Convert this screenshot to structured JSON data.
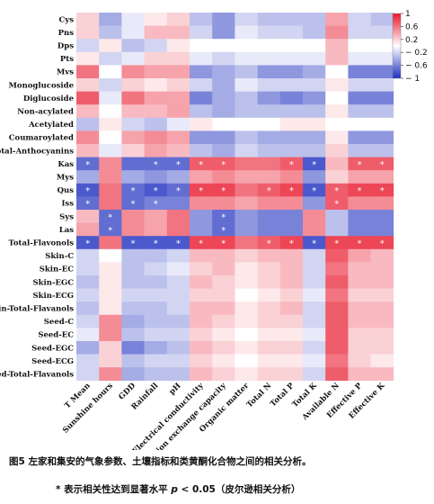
{
  "caption": "图5 左家和集安的气象参数、土壤指标和类黄酮化合物之间的相关分析。",
  "note": {
    "prefix": "* 表示相关性达到显著水平 ",
    "p": "p",
    "suffix": " < 0.05（皮尔逊相关分析）"
  },
  "chart_data": {
    "type": "heatmap",
    "title": "",
    "rows": [
      "Cys",
      "Pns",
      "Dps",
      "Pts",
      "Mvs",
      "Monoglucoside",
      "Diglucoside",
      "Non-acylated",
      "Acetylated",
      "Coumaroylated",
      "Total-Anthocyanins",
      "Kas",
      "Mys",
      "Qus",
      "Iss",
      "Sys",
      "Las",
      "Total-Flavonols",
      "Skin-C",
      "Skin-EC",
      "Skin-EGC",
      "Skin-ECG",
      "Skin-Total-Flavanols",
      "Seed-C",
      "Seed-EC",
      "Seed-EGC",
      "Seed-ECG",
      "Seed-Total-Flavanols"
    ],
    "columns": [
      "T Mean",
      "Sunshine hours",
      "GDD",
      "Rainfall",
      "pH",
      "Electrical conductivity",
      "Cation exchange capacity",
      "Organic matter",
      "Total N",
      "Total P",
      "Total K",
      "Available N",
      "Effective P",
      "Effective K"
    ],
    "values": [
      [
        0.2,
        -0.4,
        -0.1,
        0.1,
        0.2,
        -0.3,
        -0.5,
        -0.2,
        -0.3,
        -0.3,
        -0.3,
        0.4,
        -0.2,
        -0.3
      ],
      [
        0.2,
        -0.3,
        -0.1,
        0.3,
        0.3,
        -0.2,
        -0.5,
        -0.1,
        -0.2,
        -0.2,
        -0.3,
        0.5,
        -0.2,
        -0.2
      ],
      [
        -0.2,
        0.1,
        -0.3,
        -0.2,
        0.1,
        0.0,
        0.0,
        0.0,
        0.0,
        0.0,
        0.0,
        0.3,
        0.0,
        0.0
      ],
      [
        0.1,
        -0.2,
        -0.1,
        0.2,
        0.2,
        -0.1,
        -0.2,
        -0.1,
        -0.1,
        -0.1,
        -0.1,
        0.3,
        -0.1,
        -0.1
      ],
      [
        0.6,
        0.0,
        0.5,
        0.4,
        0.4,
        -0.5,
        -0.4,
        -0.3,
        -0.5,
        -0.5,
        -0.4,
        0.0,
        -0.6,
        -0.6
      ],
      [
        0.2,
        -0.2,
        0.2,
        0.1,
        0.2,
        -0.2,
        -0.4,
        -0.1,
        -0.2,
        -0.2,
        -0.2,
        0.1,
        -0.2,
        -0.2
      ],
      [
        0.7,
        -0.1,
        0.6,
        0.4,
        0.4,
        -0.6,
        -0.4,
        -0.3,
        -0.5,
        -0.6,
        -0.5,
        0.0,
        -0.6,
        -0.6
      ],
      [
        0.3,
        0.0,
        0.3,
        0.3,
        0.4,
        -0.3,
        -0.4,
        -0.3,
        -0.3,
        -0.3,
        -0.3,
        0.1,
        -0.3,
        -0.3
      ],
      [
        -0.3,
        0.1,
        -0.2,
        -0.3,
        -0.1,
        0.1,
        0.0,
        0.0,
        0.0,
        0.1,
        0.1,
        0.0,
        0.0,
        0.0
      ],
      [
        0.5,
        0.0,
        0.4,
        0.5,
        0.4,
        -0.5,
        -0.5,
        -0.3,
        -0.4,
        -0.4,
        -0.4,
        0.1,
        -0.5,
        -0.5
      ],
      [
        0.3,
        -0.1,
        0.2,
        0.4,
        0.3,
        -0.3,
        -0.4,
        -0.2,
        -0.3,
        -0.3,
        -0.3,
        0.2,
        -0.3,
        -0.3
      ],
      [
        -0.7,
        0.5,
        -0.7,
        -0.7,
        -0.7,
        0.7,
        0.7,
        0.6,
        0.6,
        0.7,
        -0.8,
        0.3,
        0.7,
        0.7
      ],
      [
        -0.4,
        0.5,
        -0.4,
        -0.5,
        -0.4,
        0.4,
        0.5,
        0.4,
        0.4,
        0.5,
        -0.5,
        0.2,
        0.4,
        0.4
      ],
      [
        -0.8,
        0.6,
        -0.7,
        -0.8,
        -0.7,
        0.8,
        0.8,
        0.6,
        0.7,
        0.8,
        -0.8,
        0.7,
        0.8,
        0.8
      ],
      [
        -0.7,
        0.6,
        -0.7,
        -0.6,
        -0.6,
        0.5,
        0.5,
        0.4,
        0.5,
        0.5,
        -0.5,
        0.7,
        0.5,
        0.5
      ],
      [
        0.3,
        -0.7,
        0.5,
        0.4,
        0.6,
        -0.5,
        -0.7,
        -0.5,
        -0.6,
        -0.6,
        0.5,
        -0.3,
        -0.6,
        -0.6
      ],
      [
        0.4,
        -0.7,
        0.5,
        0.4,
        0.6,
        -0.5,
        -0.7,
        -0.5,
        -0.6,
        -0.6,
        0.5,
        -0.3,
        -0.6,
        -0.6
      ],
      [
        -0.8,
        0.6,
        -0.8,
        -0.8,
        -0.8,
        0.8,
        0.8,
        0.6,
        0.7,
        0.8,
        -0.8,
        0.8,
        0.8,
        0.8
      ],
      [
        -0.2,
        0.0,
        -0.3,
        -0.3,
        -0.2,
        0.3,
        0.3,
        0.2,
        0.3,
        0.3,
        -0.2,
        0.7,
        0.4,
        0.3
      ],
      [
        -0.2,
        0.1,
        -0.3,
        -0.2,
        -0.1,
        0.2,
        0.3,
        0.1,
        0.2,
        0.3,
        -0.2,
        0.6,
        0.3,
        0.3
      ],
      [
        -0.3,
        0.1,
        -0.3,
        -0.3,
        -0.2,
        0.3,
        0.2,
        0.1,
        0.2,
        0.3,
        -0.2,
        0.7,
        0.3,
        0.3
      ],
      [
        -0.2,
        0.1,
        -0.2,
        -0.2,
        -0.2,
        0.2,
        0.2,
        0.0,
        0.1,
        0.2,
        -0.1,
        0.6,
        0.2,
        0.2
      ],
      [
        -0.3,
        0.1,
        -0.3,
        -0.3,
        -0.2,
        0.3,
        0.3,
        0.1,
        0.2,
        0.3,
        -0.2,
        0.7,
        0.3,
        0.3
      ],
      [
        -0.2,
        0.5,
        -0.4,
        -0.3,
        -0.3,
        0.3,
        0.2,
        0.1,
        0.2,
        0.2,
        -0.2,
        0.7,
        0.3,
        0.3
      ],
      [
        -0.1,
        0.5,
        -0.3,
        -0.2,
        -0.2,
        0.2,
        0.1,
        0.0,
        0.1,
        0.1,
        -0.1,
        0.7,
        0.2,
        0.2
      ],
      [
        -0.4,
        0.2,
        -0.6,
        -0.4,
        -0.3,
        0.3,
        0.2,
        0.1,
        0.2,
        0.2,
        -0.2,
        0.7,
        0.2,
        0.2
      ],
      [
        -0.2,
        0.2,
        -0.3,
        -0.2,
        -0.2,
        0.2,
        0.1,
        0.0,
        0.1,
        0.1,
        -0.1,
        0.6,
        0.2,
        0.1
      ],
      [
        -0.2,
        0.5,
        -0.4,
        -0.3,
        -0.3,
        0.3,
        0.2,
        0.1,
        0.2,
        0.2,
        -0.2,
        0.7,
        0.3,
        0.3
      ]
    ],
    "significant": [
      [
        11,
        0
      ],
      [
        11,
        3
      ],
      [
        11,
        4
      ],
      [
        11,
        5
      ],
      [
        11,
        6
      ],
      [
        11,
        9
      ],
      [
        11,
        10
      ],
      [
        11,
        12
      ],
      [
        11,
        13
      ],
      [
        13,
        0
      ],
      [
        13,
        2
      ],
      [
        13,
        3
      ],
      [
        13,
        4
      ],
      [
        13,
        5
      ],
      [
        13,
        6
      ],
      [
        13,
        8
      ],
      [
        13,
        9
      ],
      [
        13,
        10
      ],
      [
        13,
        11
      ],
      [
        13,
        12
      ],
      [
        13,
        13
      ],
      [
        14,
        0
      ],
      [
        14,
        2
      ],
      [
        14,
        3
      ],
      [
        14,
        11
      ],
      [
        15,
        1
      ],
      [
        15,
        6
      ],
      [
        16,
        1
      ],
      [
        16,
        6
      ],
      [
        17,
        0
      ],
      [
        17,
        2
      ],
      [
        17,
        3
      ],
      [
        17,
        4
      ],
      [
        17,
        5
      ],
      [
        17,
        6
      ],
      [
        17,
        8
      ],
      [
        17,
        9
      ],
      [
        17,
        10
      ],
      [
        17,
        11
      ],
      [
        17,
        12
      ],
      [
        17,
        13
      ]
    ],
    "star_symbol": "*",
    "colorbar": {
      "min": -1,
      "max": 1,
      "ticks": [
        1,
        0.6,
        0.2,
        -0.2,
        -0.6,
        -1
      ],
      "tick_labels": [
        "1",
        "0.6",
        "0.2",
        "− 0.2",
        "− 0.6",
        "− 1"
      ],
      "colors": {
        "negative": "#1f2fbf",
        "zero": "#ffffff",
        "positive": "#e8182c"
      }
    },
    "legend_position": "top-right"
  }
}
